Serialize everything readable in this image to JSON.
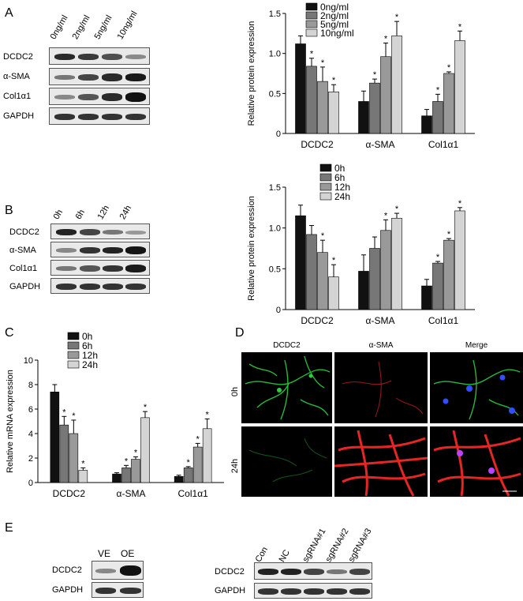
{
  "panels": {
    "A": {
      "label": "A",
      "blot": {
        "columns": [
          "0ng/ml",
          "2ng/ml",
          "5ng/ml",
          "10ng/ml"
        ],
        "rows": [
          "DCDC2",
          "α-SMA",
          "Col1α1",
          "GAPDH"
        ]
      }
    },
    "B": {
      "label": "B",
      "blot": {
        "columns": [
          "0h",
          "6h",
          "12h",
          "24h"
        ],
        "rows": [
          "DCDC2",
          "α-SMA",
          "Col1α1",
          "GAPDH"
        ]
      }
    },
    "C": {
      "label": "C"
    },
    "D": {
      "label": "D",
      "headers": [
        "DCDC2",
        "α-SMA",
        "Merge"
      ],
      "rows": [
        "0h",
        "24h"
      ]
    },
    "E": {
      "label": "E",
      "blot1": {
        "columns": [
          "VE",
          "OE"
        ],
        "rows": [
          "DCDC2",
          "GAPDH"
        ]
      },
      "blot2": {
        "columns": [
          "Con",
          "NC",
          "sgRNA#1",
          "sgRNA#2",
          "sgRNA#3"
        ],
        "rows": [
          "DCDC2",
          "GAPDH"
        ]
      }
    }
  },
  "colors": {
    "s0": "#111111",
    "s1": "#777777",
    "s2": "#999999",
    "s3": "#d4d4d4"
  },
  "chart_data": [
    {
      "id": "A",
      "type": "bar",
      "ylabel": "Relative protein expression",
      "ylim": [
        0,
        1.5
      ],
      "yticks": [
        "0",
        "0.5",
        "1.0",
        "1.5"
      ],
      "categories": [
        "DCDC2",
        "α-SMA",
        "Col1α1"
      ],
      "legend_placement": "top-right",
      "series": [
        {
          "name": "0ng/ml",
          "values": [
            1.12,
            0.4,
            0.22
          ],
          "errors": [
            0.1,
            0.13,
            0.08
          ],
          "stars": [
            false,
            false,
            false
          ]
        },
        {
          "name": "2ng/ml",
          "values": [
            0.84,
            0.63,
            0.4
          ],
          "errors": [
            0.1,
            0.05,
            0.09
          ],
          "stars": [
            true,
            true,
            true
          ]
        },
        {
          "name": "5ng/ml",
          "values": [
            0.65,
            0.96,
            0.75
          ],
          "errors": [
            0.18,
            0.17,
            0.02
          ],
          "stars": [
            true,
            true,
            true
          ]
        },
        {
          "name": "10ng/ml",
          "values": [
            0.52,
            1.22,
            1.16
          ],
          "errors": [
            0.09,
            0.18,
            0.12
          ],
          "stars": [
            true,
            true,
            true
          ]
        }
      ]
    },
    {
      "id": "B",
      "type": "bar",
      "ylabel": "Relative protein expression",
      "ylim": [
        0,
        1.5
      ],
      "yticks": [
        "0",
        "0.5",
        "1.0",
        "1.5"
      ],
      "categories": [
        "DCDC2",
        "α-SMA",
        "Col1α1"
      ],
      "legend_placement": "top-right",
      "series": [
        {
          "name": "0h",
          "values": [
            1.15,
            0.47,
            0.29
          ],
          "errors": [
            0.13,
            0.2,
            0.08
          ],
          "stars": [
            false,
            false,
            false
          ]
        },
        {
          "name": "6h",
          "values": [
            0.92,
            0.75,
            0.57
          ],
          "errors": [
            0.11,
            0.14,
            0.02
          ],
          "stars": [
            false,
            false,
            true
          ]
        },
        {
          "name": "12h",
          "values": [
            0.7,
            0.97,
            0.85
          ],
          "errors": [
            0.15,
            0.13,
            0.02
          ],
          "stars": [
            true,
            true,
            true
          ]
        },
        {
          "name": "24h",
          "values": [
            0.4,
            1.12,
            1.21
          ],
          "errors": [
            0.15,
            0.06,
            0.04
          ],
          "stars": [
            true,
            true,
            true
          ]
        }
      ]
    },
    {
      "id": "C",
      "type": "bar",
      "ylabel": "Relative mRNA expression",
      "ylim": [
        0,
        10
      ],
      "yticks": [
        "0",
        "2",
        "4",
        "6",
        "8",
        "10"
      ],
      "categories": [
        "DCDC2",
        "α-SMA",
        "Col1α1"
      ],
      "legend_placement": "top-left",
      "series": [
        {
          "name": "0h",
          "values": [
            7.4,
            0.7,
            0.5
          ],
          "errors": [
            0.6,
            0.1,
            0.1
          ],
          "stars": [
            false,
            false,
            false
          ]
        },
        {
          "name": "6h",
          "values": [
            4.7,
            1.2,
            1.2
          ],
          "errors": [
            0.7,
            0.2,
            0.1
          ],
          "stars": [
            true,
            true,
            true
          ]
        },
        {
          "name": "12h",
          "values": [
            4.0,
            1.9,
            2.9
          ],
          "errors": [
            1.1,
            0.2,
            0.3
          ],
          "stars": [
            true,
            true,
            true
          ]
        },
        {
          "name": "24h",
          "values": [
            1.0,
            5.3,
            4.4
          ],
          "errors": [
            0.2,
            0.5,
            0.8
          ],
          "stars": [
            true,
            true,
            true
          ]
        }
      ]
    }
  ]
}
